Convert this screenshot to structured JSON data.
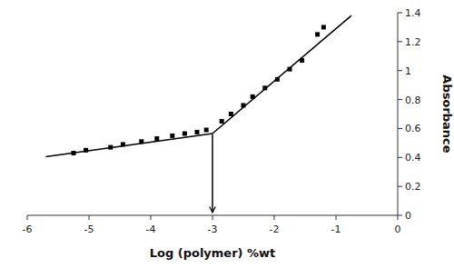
{
  "chart_data": {
    "type": "scatter",
    "xlabel": "Log (polymer) %wt",
    "ylabel": "Absorbance",
    "series": [
      {
        "type": "scatter",
        "marker": "square",
        "color": "black",
        "x": [
          -5.25,
          -5.05,
          -4.65,
          -4.45,
          -4.15,
          -3.9,
          -3.65,
          -3.45,
          -3.25,
          -3.1,
          -2.85,
          -2.7,
          -2.5,
          -2.35,
          -2.15,
          -1.95,
          -1.75,
          -1.55,
          -1.3,
          -1.2
        ],
        "values": [
          0.43,
          0.45,
          0.47,
          0.49,
          0.51,
          0.53,
          0.55,
          0.565,
          0.575,
          0.59,
          0.65,
          0.7,
          0.76,
          0.82,
          0.88,
          0.94,
          1.01,
          1.07,
          1.25,
          1.3
        ]
      },
      {
        "type": "line",
        "line_style": "solid",
        "color": "black",
        "x": [
          -5.7,
          -3.0
        ],
        "values": [
          0.405,
          0.565
        ]
      },
      {
        "type": "line",
        "line_style": "solid",
        "color": "black",
        "x": [
          -3.0,
          -0.75
        ],
        "values": [
          0.565,
          1.38
        ]
      }
    ],
    "arrow": {
      "x": -3.0,
      "y_start": 0.56,
      "y_end": 0.02,
      "color": "black"
    },
    "xlim": [
      -6,
      0
    ],
    "ylim": [
      0,
      1.4
    ],
    "xticks": [
      -6,
      -5,
      -4,
      -3,
      -2,
      -1,
      0
    ],
    "yticks": [
      0,
      0.2,
      0.4,
      0.6,
      0.8,
      1,
      1.2,
      1.4
    ],
    "grid": false
  }
}
